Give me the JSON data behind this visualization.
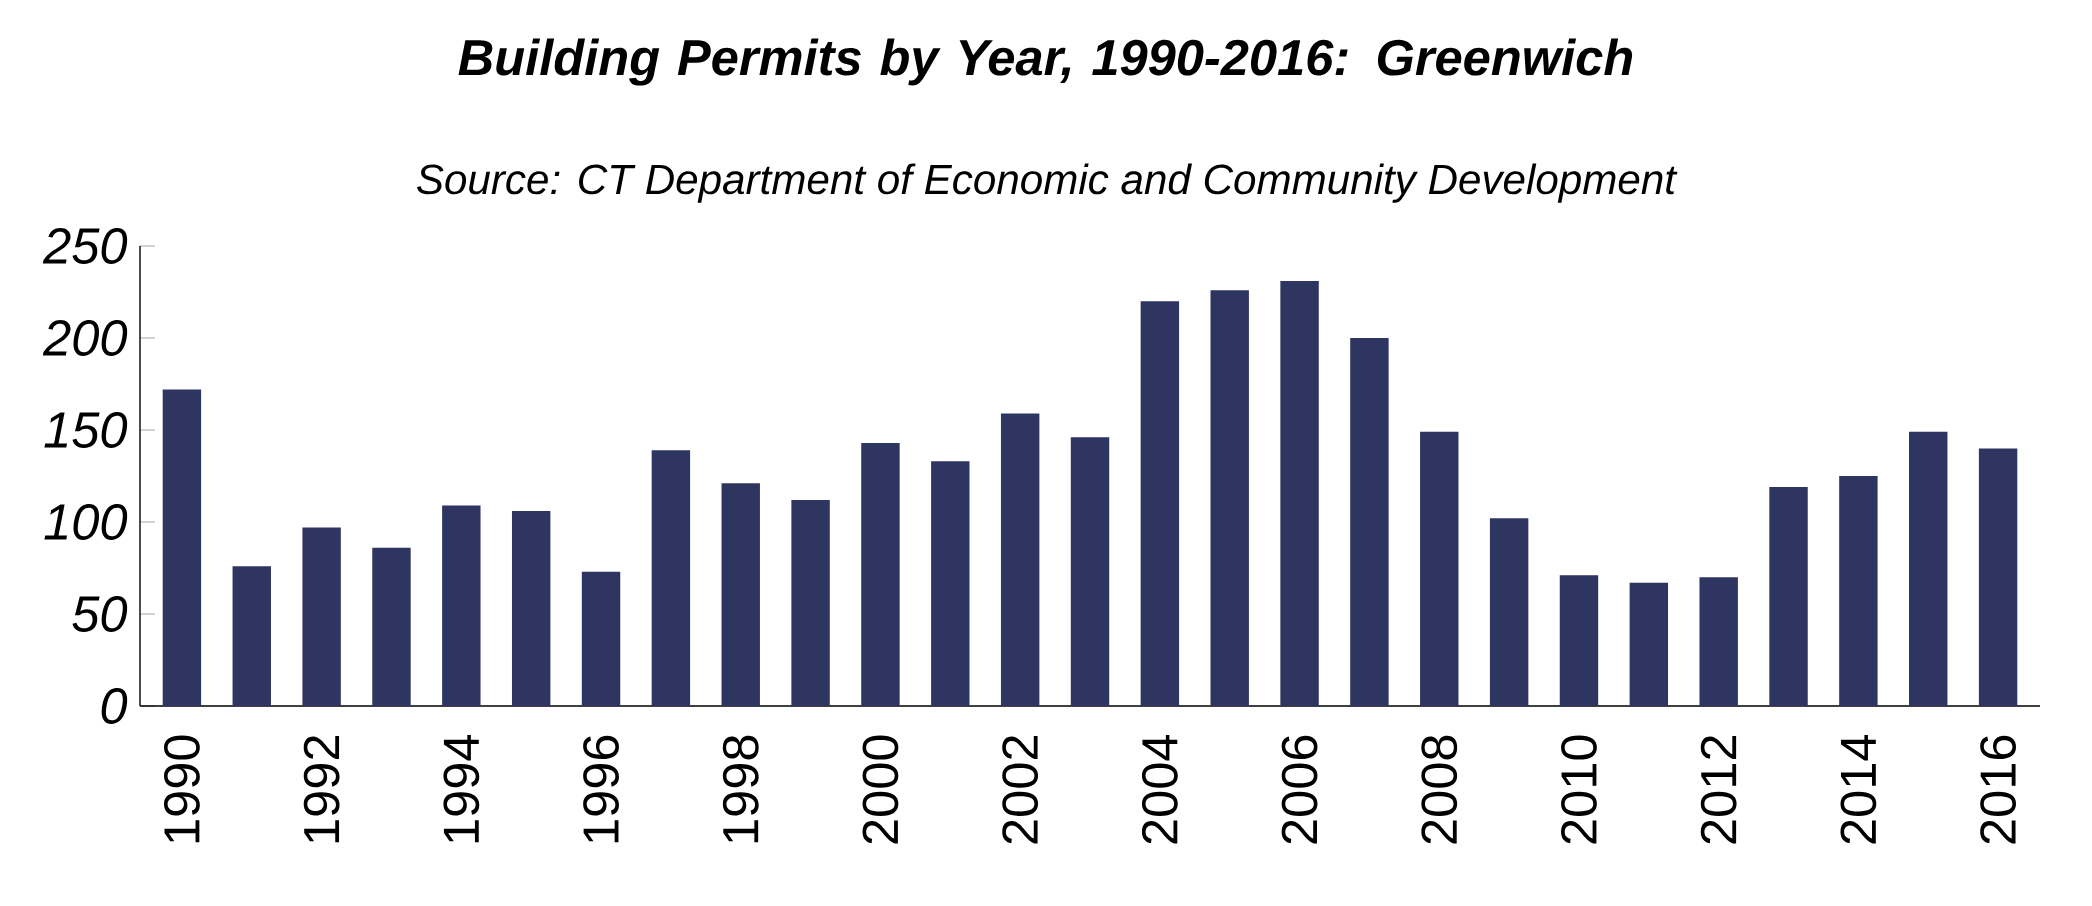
{
  "chart_data": {
    "type": "bar",
    "title": "Building Permits by Year, 1990-2016: Greenwich",
    "subtitle": "Source: CT Department of Economic and Community Development",
    "categories": [
      "1990",
      null,
      "1992",
      null,
      "1994",
      null,
      "1996",
      null,
      "1998",
      null,
      "2000",
      null,
      "2002",
      null,
      "2004",
      null,
      "2006",
      null,
      "2008",
      null,
      "2010",
      null,
      "2012",
      null,
      "2014",
      null,
      "2016"
    ],
    "values": [
      172,
      76,
      97,
      86,
      109,
      106,
      73,
      139,
      121,
      112,
      143,
      133,
      159,
      146,
      220,
      226,
      231,
      200,
      149,
      102,
      71,
      67,
      70,
      119,
      125,
      149,
      140
    ],
    "color": "#2e3560",
    "ylim": [
      0,
      250
    ],
    "yticks": [
      0,
      50,
      100,
      150,
      200,
      250
    ],
    "grid": false
  }
}
